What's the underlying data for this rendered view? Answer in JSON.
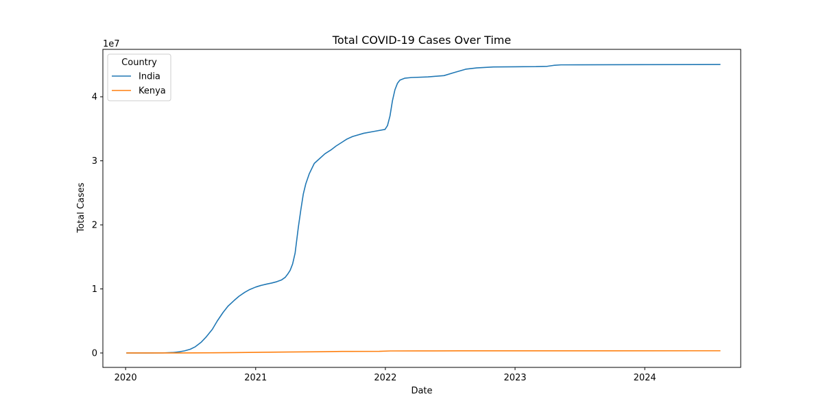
{
  "chart_data": {
    "type": "line",
    "title": "Total COVID-19 Cases Over Time",
    "xlabel": "Date",
    "ylabel": "Total Cases",
    "y_offset_text": "1e7",
    "x_axis": {
      "type": "date",
      "range": [
        "2019-10-29",
        "2024-09-27"
      ],
      "ticks": [
        "2020-01-01",
        "2021-01-01",
        "2022-01-01",
        "2023-01-01",
        "2024-01-01"
      ],
      "tick_labels": [
        "2020",
        "2021",
        "2022",
        "2023",
        "2024"
      ]
    },
    "y_axis": {
      "range": [
        -2250000,
        47400000
      ],
      "ticks": [
        0,
        10000000,
        20000000,
        30000000,
        40000000
      ],
      "tick_labels": [
        "0",
        "1",
        "2",
        "3",
        "4"
      ]
    },
    "grid": false,
    "legend": {
      "title": "Country",
      "placement": "top-left"
    },
    "series": [
      {
        "name": "India",
        "color": "#1f77b4",
        "points": [
          [
            "2020-01-03",
            0
          ],
          [
            "2020-03-01",
            0
          ],
          [
            "2020-04-15",
            10000
          ],
          [
            "2020-05-15",
            80000
          ],
          [
            "2020-06-01",
            190000
          ],
          [
            "2020-06-15",
            330000
          ],
          [
            "2020-07-01",
            585000
          ],
          [
            "2020-07-15",
            970000
          ],
          [
            "2020-08-01",
            1700000
          ],
          [
            "2020-08-15",
            2520000
          ],
          [
            "2020-09-01",
            3690000
          ],
          [
            "2020-09-15",
            5000000
          ],
          [
            "2020-10-01",
            6310000
          ],
          [
            "2020-10-15",
            7300000
          ],
          [
            "2020-11-01",
            8180000
          ],
          [
            "2020-11-15",
            8850000
          ],
          [
            "2020-12-01",
            9460000
          ],
          [
            "2020-12-15",
            9900000
          ],
          [
            "2021-01-01",
            10290000
          ],
          [
            "2021-01-15",
            10530000
          ],
          [
            "2021-02-01",
            10760000
          ],
          [
            "2021-02-15",
            10920000
          ],
          [
            "2021-03-01",
            11120000
          ],
          [
            "2021-03-15",
            11410000
          ],
          [
            "2021-03-25",
            11800000
          ],
          [
            "2021-04-01",
            12300000
          ],
          [
            "2021-04-08",
            12900000
          ],
          [
            "2021-04-15",
            13900000
          ],
          [
            "2021-04-22",
            15600000
          ],
          [
            "2021-05-01",
            19600000
          ],
          [
            "2021-05-08",
            22300000
          ],
          [
            "2021-05-15",
            24800000
          ],
          [
            "2021-05-22",
            26400000
          ],
          [
            "2021-06-01",
            28000000
          ],
          [
            "2021-06-15",
            29600000
          ],
          [
            "2021-07-01",
            30400000
          ],
          [
            "2021-07-15",
            31100000
          ],
          [
            "2021-08-01",
            31700000
          ],
          [
            "2021-08-15",
            32300000
          ],
          [
            "2021-09-01",
            32900000
          ],
          [
            "2021-09-15",
            33400000
          ],
          [
            "2021-10-01",
            33800000
          ],
          [
            "2021-11-01",
            34300000
          ],
          [
            "2021-12-01",
            34600000
          ],
          [
            "2021-12-31",
            34900000
          ],
          [
            "2022-01-07",
            35500000
          ],
          [
            "2022-01-14",
            37000000
          ],
          [
            "2022-01-21",
            39400000
          ],
          [
            "2022-01-28",
            41100000
          ],
          [
            "2022-02-04",
            42100000
          ],
          [
            "2022-02-11",
            42600000
          ],
          [
            "2022-02-25",
            42900000
          ],
          [
            "2022-03-15",
            43000000
          ],
          [
            "2022-05-01",
            43100000
          ],
          [
            "2022-06-15",
            43300000
          ],
          [
            "2022-07-15",
            43800000
          ],
          [
            "2022-08-15",
            44300000
          ],
          [
            "2022-09-15",
            44500000
          ],
          [
            "2022-11-01",
            44650000
          ],
          [
            "2023-01-01",
            44680000
          ],
          [
            "2023-03-01",
            44700000
          ],
          [
            "2023-04-01",
            44750000
          ],
          [
            "2023-04-20",
            44900000
          ],
          [
            "2023-05-10",
            44980000
          ],
          [
            "2023-07-01",
            44990000
          ],
          [
            "2024-01-01",
            45010000
          ],
          [
            "2024-08-01",
            45040000
          ]
        ]
      },
      {
        "name": "Kenya",
        "color": "#ff7f0e",
        "points": [
          [
            "2020-01-03",
            0
          ],
          [
            "2020-06-01",
            2000
          ],
          [
            "2020-09-01",
            35000
          ],
          [
            "2020-11-01",
            60000
          ],
          [
            "2021-01-01",
            98000
          ],
          [
            "2021-04-01",
            147000
          ],
          [
            "2021-07-01",
            194000
          ],
          [
            "2021-09-01",
            240000
          ],
          [
            "2021-12-15",
            258000
          ],
          [
            "2022-01-15",
            318000
          ],
          [
            "2022-04-01",
            324000
          ],
          [
            "2022-08-01",
            337000
          ],
          [
            "2023-01-01",
            342000
          ],
          [
            "2024-08-01",
            344000
          ]
        ]
      }
    ]
  }
}
